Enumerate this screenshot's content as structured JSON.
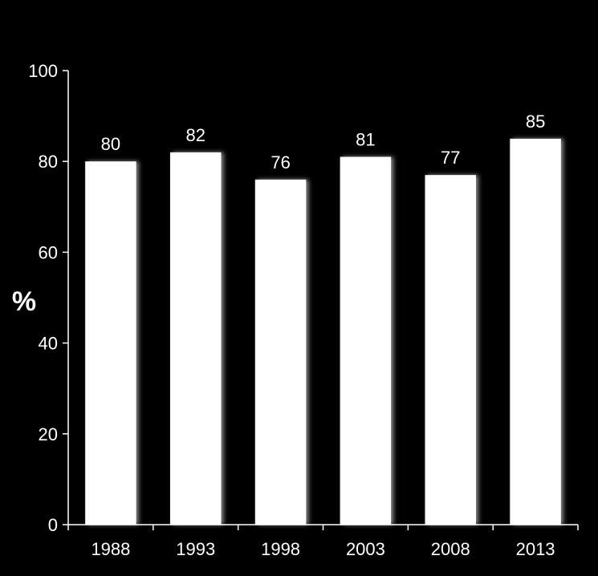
{
  "chart_data": {
    "type": "bar",
    "categories": [
      "1988",
      "1993",
      "1998",
      "2003",
      "2008",
      "2013"
    ],
    "values": [
      80,
      82,
      76,
      81,
      77,
      85
    ],
    "title": "",
    "xlabel": "",
    "ylabel": "%",
    "ylim": [
      0,
      100
    ],
    "yticks": [
      0,
      20,
      40,
      60,
      80,
      100
    ],
    "grid": false,
    "legend": "none",
    "data_labels": true,
    "colors": {
      "background": "#000000",
      "bar": "#ffffff",
      "axis": "#ffffff",
      "text": "#ffffff"
    }
  }
}
